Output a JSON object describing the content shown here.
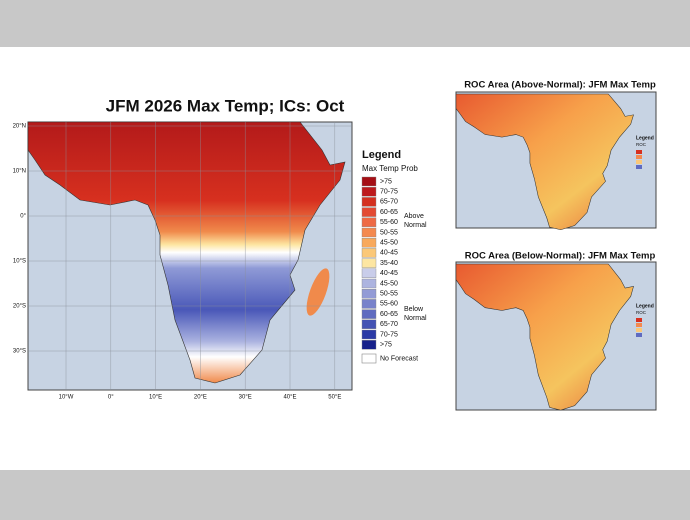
{
  "main_map": {
    "title": "JFM 2026 Max Temp; ICs: Oct",
    "lat_labels": [
      "20°N",
      "10°N",
      "0°",
      "10°S",
      "20°S",
      "30°S"
    ],
    "lon_labels": [
      "10°W",
      "0°",
      "10°E",
      "20°E",
      "30°E",
      "40°E",
      "50°E"
    ]
  },
  "legend": {
    "title": "Legend",
    "subtitle": "Max Temp Prob",
    "entries": [
      {
        "label": ">75",
        "color": "#a50f15"
      },
      {
        "label": "70-75",
        "color": "#bd1a1c"
      },
      {
        "label": "65-70",
        "color": "#d4301f"
      },
      {
        "label": "60-65",
        "color": "#e34a33"
      },
      {
        "label": "55-60",
        "color": "#ee6a45"
      },
      {
        "label": "50-55",
        "color": "#f4894f"
      },
      {
        "label": "45-50",
        "color": "#f8a95c"
      },
      {
        "label": "40-45",
        "color": "#fbc878"
      },
      {
        "label": "35-40",
        "color": "#fde6a2"
      },
      {
        "label": "40-45",
        "color": "#c9cdea"
      },
      {
        "label": "45-50",
        "color": "#adb4e0"
      },
      {
        "label": "50-55",
        "color": "#939bd6"
      },
      {
        "label": "55-60",
        "color": "#7882cb"
      },
      {
        "label": "60-65",
        "color": "#5f6bc0"
      },
      {
        "label": "65-70",
        "color": "#4453b4"
      },
      {
        "label": "70-75",
        "color": "#2b3aa6"
      },
      {
        "label": ">75",
        "color": "#17218a"
      }
    ],
    "above_label": "Above Normal",
    "below_label": "Below Normal",
    "no_forecast": "No Forecast"
  },
  "roc_maps": [
    {
      "title": "ROC Area (Above-Normal): JFM Max Temp",
      "legend_title": "Legend",
      "legend_subtitle": "ROC"
    },
    {
      "title": "ROC Area (Below-Normal): JFM Max Temp",
      "legend_title": "Legend",
      "legend_subtitle": "ROC"
    }
  ]
}
